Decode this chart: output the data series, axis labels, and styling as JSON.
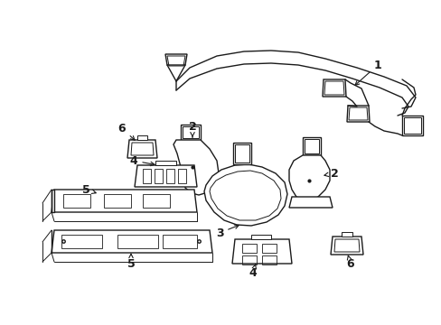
{
  "background_color": "#ffffff",
  "line_color": "#1a1a1a",
  "lw": 1.0,
  "fig_width": 4.89,
  "fig_height": 3.6,
  "dpi": 100
}
